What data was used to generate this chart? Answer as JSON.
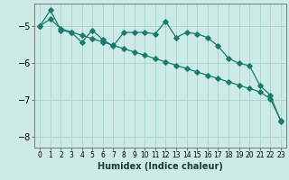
{
  "xlabel": "Humidex (Indice chaleur)",
  "bg_color": "#cceae6",
  "grid_color": "#aad4ce",
  "line_color": "#1a7a6e",
  "xlim": [
    -0.5,
    23.5
  ],
  "ylim": [
    -8.3,
    -4.4
  ],
  "yticks": [
    -8,
    -7,
    -6,
    -5
  ],
  "xticks": [
    0,
    1,
    2,
    3,
    4,
    5,
    6,
    7,
    8,
    9,
    10,
    11,
    12,
    13,
    14,
    15,
    16,
    17,
    18,
    19,
    20,
    21,
    22,
    23
  ],
  "series_straight_x": [
    0,
    1,
    2,
    3,
    4,
    5,
    6,
    7,
    8,
    9,
    10,
    11,
    12,
    13,
    14,
    15,
    16,
    17,
    18,
    19,
    20,
    21,
    22,
    23
  ],
  "series_straight_y": [
    -5.0,
    -4.82,
    -5.08,
    -5.17,
    -5.26,
    -5.35,
    -5.44,
    -5.53,
    -5.62,
    -5.71,
    -5.8,
    -5.89,
    -5.98,
    -6.07,
    -6.16,
    -6.25,
    -6.34,
    -6.43,
    -6.52,
    -6.61,
    -6.7,
    -6.79,
    -6.98,
    -7.57
  ],
  "series_jagged_x": [
    0,
    1,
    2,
    3,
    4,
    5,
    6,
    7,
    8,
    9,
    10,
    11,
    12,
    13,
    14,
    15,
    16,
    17,
    18,
    19,
    20,
    21,
    22,
    23
  ],
  "series_jagged_y": [
    -5.0,
    -4.58,
    -5.12,
    -5.18,
    -5.45,
    -5.12,
    -5.38,
    -5.55,
    -5.18,
    -5.18,
    -5.18,
    -5.22,
    -4.88,
    -5.32,
    -5.18,
    -5.22,
    -5.32,
    -5.55,
    -5.88,
    -6.02,
    -6.08,
    -6.62,
    -6.88,
    -7.6
  ]
}
